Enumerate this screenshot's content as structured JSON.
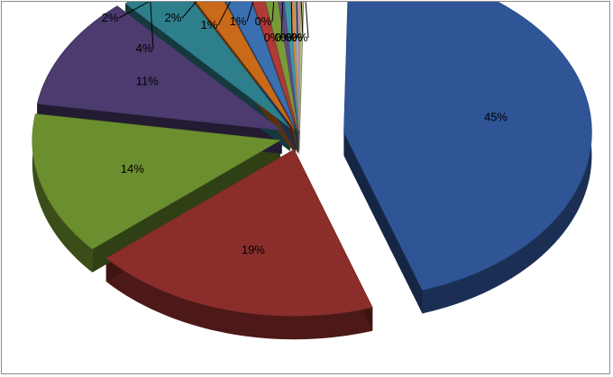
{
  "chart_data": {
    "type": "pie",
    "style": "3d-exploded",
    "legend": "none",
    "title": "",
    "slices": [
      {
        "label": "45%",
        "value": 45,
        "color": "#2f5597"
      },
      {
        "label": "19%",
        "value": 19,
        "color": "#8b2e2b"
      },
      {
        "label": "14%",
        "value": 14,
        "color": "#6b8e2f"
      },
      {
        "label": "11%",
        "value": 11,
        "color": "#4b3b6e"
      },
      {
        "label": "4%",
        "value": 4,
        "color": "#2e7f8c"
      },
      {
        "label": "2%",
        "value": 2,
        "color": "#c96a1a"
      },
      {
        "label": "2%",
        "value": 2,
        "color": "#3a6fb0"
      },
      {
        "label": "1%",
        "value": 1,
        "color": "#b03a36"
      },
      {
        "label": "1%",
        "value": 1,
        "color": "#7a9a3a"
      },
      {
        "label": "0%",
        "value": 0.5,
        "color": "#5e4a86"
      },
      {
        "label": "0%",
        "value": 0.5,
        "color": "#3a98a8"
      },
      {
        "label": "0%",
        "value": 0.3,
        "color": "#e08a3a"
      },
      {
        "label": "0%",
        "value": 0.3,
        "color": "#8ab0d8"
      },
      {
        "label": "0%",
        "value": 0.2,
        "color": "#d88a88"
      },
      {
        "label": "0%",
        "value": 0.2,
        "color": "#b8cc88"
      }
    ]
  }
}
